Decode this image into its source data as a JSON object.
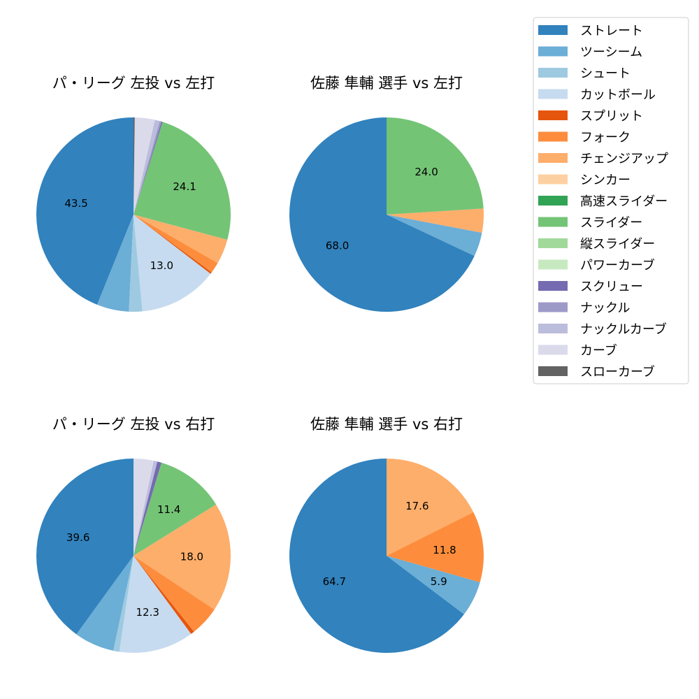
{
  "colors": {
    "ストレート": "#3182bd",
    "ツーシーム": "#6baed6",
    "シュート": "#9ecae1",
    "カットボール": "#c6dbef",
    "スプリット": "#e6550d",
    "フォーク": "#fd8d3c",
    "チェンジアップ": "#fdae6b",
    "シンカー": "#fdd0a2",
    "高速スライダー": "#31a354",
    "スライダー": "#74c476",
    "縦スライダー": "#a1d99b",
    "パワーカーブ": "#c7e9c0",
    "スクリュー": "#756bb1",
    "ナックル": "#9e9ac8",
    "ナックルカーブ": "#bcbddc",
    "カーブ": "#dadaeb",
    "スローカーブ": "#636363"
  },
  "legend": [
    "ストレート",
    "ツーシーム",
    "シュート",
    "カットボール",
    "スプリット",
    "フォーク",
    "チェンジアップ",
    "シンカー",
    "高速スライダー",
    "スライダー",
    "縦スライダー",
    "パワーカーブ",
    "スクリュー",
    "ナックル",
    "ナックルカーブ",
    "カーブ",
    "スローカーブ"
  ],
  "chart_data": [
    {
      "type": "pie",
      "title": "パ・リーグ 左投 vs 左打",
      "slices": [
        {
          "name": "ストレート",
          "value": 43.5,
          "label": "43.5"
        },
        {
          "name": "ツーシーム",
          "value": 5.3,
          "label": ""
        },
        {
          "name": "シュート",
          "value": 2.2,
          "label": ""
        },
        {
          "name": "カットボール",
          "value": 13.0,
          "label": "13.0"
        },
        {
          "name": "スプリット",
          "value": 0.3,
          "label": ""
        },
        {
          "name": "フォーク",
          "value": 1.8,
          "label": ""
        },
        {
          "name": "チェンジアップ",
          "value": 4.1,
          "label": ""
        },
        {
          "name": "スライダー",
          "value": 24.1,
          "label": "24.1"
        },
        {
          "name": "スクリュー",
          "value": 0.2,
          "label": ""
        },
        {
          "name": "ナックル",
          "value": 0.3,
          "label": ""
        },
        {
          "name": "ナックルカーブ",
          "value": 0.8,
          "label": ""
        },
        {
          "name": "カーブ",
          "value": 3.3,
          "label": ""
        },
        {
          "name": "スローカーブ",
          "value": 0.2,
          "label": ""
        }
      ]
    },
    {
      "type": "pie",
      "title": "佐藤 隼輔 選手 vs 左打",
      "slices": [
        {
          "name": "ストレート",
          "value": 68.0,
          "label": "68.0"
        },
        {
          "name": "ツーシーム",
          "value": 4.0,
          "label": ""
        },
        {
          "name": "チェンジアップ",
          "value": 4.0,
          "label": ""
        },
        {
          "name": "スライダー",
          "value": 24.0,
          "label": "24.0"
        }
      ]
    },
    {
      "type": "pie",
      "title": "パ・リーグ 左投 vs 右打",
      "slices": [
        {
          "name": "ストレート",
          "value": 39.6,
          "label": "39.6"
        },
        {
          "name": "ツーシーム",
          "value": 6.6,
          "label": ""
        },
        {
          "name": "シュート",
          "value": 1.0,
          "label": ""
        },
        {
          "name": "カットボール",
          "value": 12.3,
          "label": "12.3"
        },
        {
          "name": "スプリット",
          "value": 0.6,
          "label": ""
        },
        {
          "name": "フォーク",
          "value": 4.9,
          "label": ""
        },
        {
          "name": "チェンジアップ",
          "value": 18.0,
          "label": "18.0"
        },
        {
          "name": "スライダー",
          "value": 11.4,
          "label": "11.4"
        },
        {
          "name": "スクリュー",
          "value": 0.7,
          "label": ""
        },
        {
          "name": "ナックルカーブ",
          "value": 0.6,
          "label": ""
        },
        {
          "name": "カーブ",
          "value": 3.3,
          "label": ""
        }
      ]
    },
    {
      "type": "pie",
      "title": "佐藤 隼輔 選手 vs 右打",
      "slices": [
        {
          "name": "ストレート",
          "value": 64.7,
          "label": "64.7"
        },
        {
          "name": "ツーシーム",
          "value": 5.9,
          "label": "5.9"
        },
        {
          "name": "フォーク",
          "value": 11.8,
          "label": "11.8"
        },
        {
          "name": "チェンジアップ",
          "value": 17.6,
          "label": "17.6"
        }
      ]
    }
  ]
}
